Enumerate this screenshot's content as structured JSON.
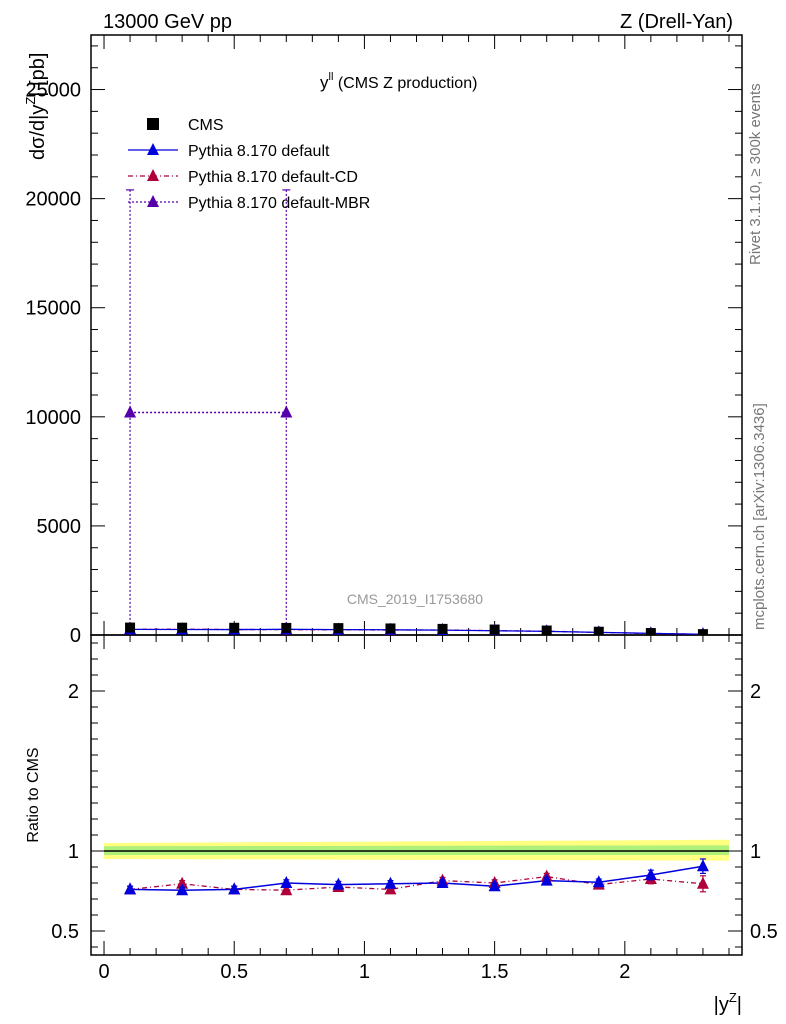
{
  "header": {
    "left": "13000 GeV pp",
    "right": "Z (Drell-Yan)"
  },
  "side": {
    "rivet": "Rivet 3.1.10, ≥ 300k events",
    "mcplots": "mcplots.cern.ch [arXiv:1306.3436]"
  },
  "watermark": "CMS_2019_I1753680",
  "chart_data": {
    "type": "scatter",
    "title_main": "y",
    "title_sup": "ll",
    "title_rest": " (CMS Z production)",
    "ylabel": "dσ/d|y",
    "ylabel_sup": "Z",
    "ylabel_unit": "| [pb]",
    "xlabel": "|y",
    "xlabel_sup": "Z",
    "xlabel_end": "|",
    "ratio_ylabel": "Ratio to CMS",
    "xlim": [
      -0.05,
      2.45
    ],
    "ylim": [
      0,
      27500
    ],
    "ratio_ylim": [
      0.35,
      2.35
    ],
    "x_ticks": [
      {
        "v": 0,
        "label": "0"
      },
      {
        "v": 0.5,
        "label": "0.5"
      },
      {
        "v": 1,
        "label": "1"
      },
      {
        "v": 1.5,
        "label": "1.5"
      },
      {
        "v": 2,
        "label": "2"
      }
    ],
    "y_ticks": [
      {
        "v": 0,
        "label": "0"
      },
      {
        "v": 5000,
        "label": "5000"
      },
      {
        "v": 10000,
        "label": "10000"
      },
      {
        "v": 15000,
        "label": "15000"
      },
      {
        "v": 20000,
        "label": "20000"
      },
      {
        "v": 25000,
        "label": "25000"
      }
    ],
    "ratio_ticks": [
      {
        "v": 0.5,
        "label": "0.5"
      },
      {
        "v": 1,
        "label": "1"
      },
      {
        "v": 2,
        "label": "2"
      }
    ],
    "band": [
      {
        "x": 0,
        "lo": 0.95,
        "hi": 1.05
      },
      {
        "x": 2.4,
        "lo": 0.94,
        "hi": 1.07
      }
    ],
    "x": [
      0.1,
      0.3,
      0.5,
      0.7,
      0.9,
      1.1,
      1.3,
      1.5,
      1.7,
      1.9,
      2.1,
      2.3
    ],
    "legend": [
      {
        "label": "CMS"
      },
      {
        "label": "Pythia 8.170 default"
      },
      {
        "label": "Pythia 8.170 default-CD"
      },
      {
        "label": "Pythia 8.170 default-MBR"
      }
    ],
    "series": [
      {
        "name": "CMS",
        "color": "#000000",
        "values": [
          340,
          335,
          330,
          325,
          315,
          300,
          280,
          250,
          205,
          150,
          90,
          40
        ],
        "errors": [
          15,
          15,
          15,
          15,
          15,
          14,
          13,
          12,
          10,
          8,
          6,
          4
        ]
      },
      {
        "name": "Pythia 8.170 default",
        "color": "#0000dd",
        "values": [
          258,
          252,
          250,
          260,
          248,
          238,
          223,
          195,
          167,
          120,
          76,
          36
        ],
        "ratio": [
          0.76,
          0.755,
          0.76,
          0.8,
          0.79,
          0.795,
          0.8,
          0.78,
          0.815,
          0.805,
          0.85,
          0.905
        ],
        "ratio_err": [
          0.02,
          0.02,
          0.02,
          0.02,
          0.02,
          0.02,
          0.02,
          0.02,
          0.02,
          0.02,
          0.03,
          0.045
        ]
      },
      {
        "name": "Pythia 8.170 default-CD",
        "color": "#b0003a",
        "values": [
          258,
          268,
          250,
          245,
          242,
          228,
          230,
          200,
          173,
          118,
          74,
          32
        ],
        "ratio": [
          0.76,
          0.795,
          0.76,
          0.755,
          0.775,
          0.76,
          0.815,
          0.8,
          0.84,
          0.79,
          0.825,
          0.795
        ],
        "ratio_err": [
          0.02,
          0.02,
          0.02,
          0.02,
          0.02,
          0.02,
          0.02,
          0.02,
          0.02,
          0.025,
          0.03,
          0.05
        ]
      },
      {
        "name": "Pythia 8.170 default-MBR",
        "color": "#5500aa",
        "values": [
          10200,
          10200
        ],
        "points_x": [
          0.1,
          0.7
        ],
        "errors": [
          10200,
          10200
        ]
      }
    ]
  }
}
